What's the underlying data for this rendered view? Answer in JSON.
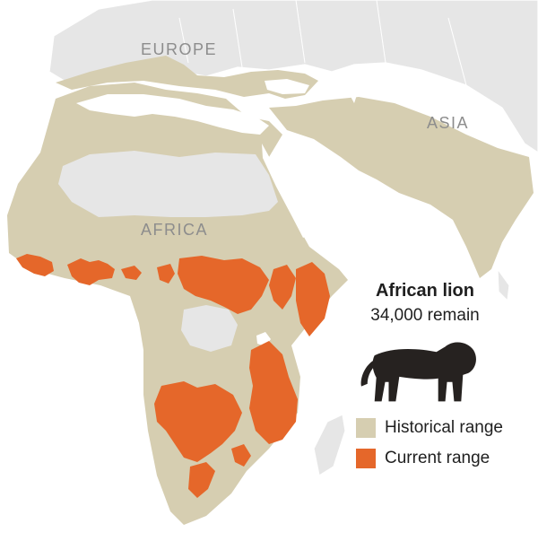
{
  "map": {
    "region_labels": {
      "europe": "EUROPE",
      "asia": "ASIA",
      "africa": "AFRICA"
    }
  },
  "info": {
    "title": "African lion",
    "subtitle": "34,000 remain",
    "icon": "lion-silhouette-icon"
  },
  "legend": {
    "items": [
      {
        "label": "Historical range",
        "color": "#d6ceb1"
      },
      {
        "label": "Current range",
        "color": "#e5672a"
      }
    ]
  },
  "colors": {
    "land": "#e6e6e6",
    "historical": "#d6ceb1",
    "current": "#e5672a",
    "water": "#ffffff",
    "lion": "#262220"
  }
}
